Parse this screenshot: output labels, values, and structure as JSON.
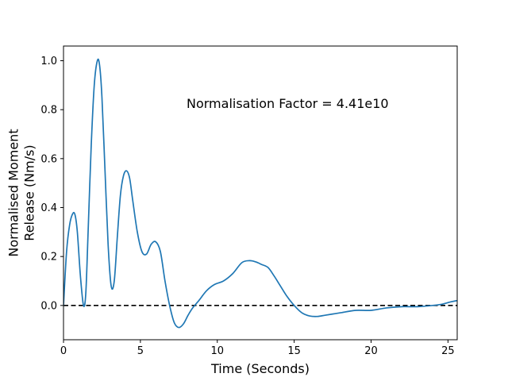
{
  "chart_data": {
    "type": "line",
    "xlabel": "Time (Seconds)",
    "ylabel_lines": [
      "Normalised Moment",
      "Release (Nm/s)"
    ],
    "annotation": "Normalisation Factor = 4.41e10",
    "xlim": [
      0,
      25.6
    ],
    "ylim": [
      -0.14,
      1.06
    ],
    "x_ticks": [
      0,
      5,
      10,
      15,
      20,
      25
    ],
    "y_ticks": [
      0.0,
      0.2,
      0.4,
      0.6,
      0.8,
      1.0
    ],
    "x_tick_labels": [
      "0",
      "5",
      "10",
      "15",
      "20",
      "25"
    ],
    "y_tick_labels": [
      "0.0",
      "0.2",
      "0.4",
      "0.6",
      "0.8",
      "1.0"
    ],
    "grid": false,
    "reference_line": {
      "y": 0.0,
      "style": "dashed",
      "color": "#000000"
    },
    "series": [
      {
        "color": "#1f77b4",
        "x": [
          0,
          0.2,
          0.4,
          0.6,
          0.75,
          0.9,
          1.1,
          1.3,
          1.45,
          1.6,
          1.8,
          2.0,
          2.2,
          2.35,
          2.5,
          2.7,
          2.9,
          3.1,
          3.3,
          3.5,
          3.7,
          3.9,
          4.1,
          4.3,
          4.5,
          4.8,
          5.1,
          5.4,
          5.7,
          6.0,
          6.3,
          6.6,
          6.9,
          7.2,
          7.5,
          7.8,
          8.1,
          8.4,
          8.8,
          9.3,
          9.8,
          10.4,
          11.0,
          11.6,
          12.1,
          12.5,
          12.9,
          13.3,
          13.7,
          14.1,
          14.5,
          15.0,
          15.5,
          16.0,
          16.5,
          17.0,
          17.5,
          18.0,
          19.0,
          20.0,
          21.0,
          22.0,
          23.0,
          24.0,
          24.6,
          25.2,
          25.6
        ],
        "y": [
          0.0,
          0.22,
          0.33,
          0.375,
          0.37,
          0.3,
          0.12,
          0.0,
          0.05,
          0.3,
          0.65,
          0.9,
          1.0,
          0.98,
          0.85,
          0.55,
          0.25,
          0.08,
          0.1,
          0.28,
          0.45,
          0.53,
          0.55,
          0.52,
          0.43,
          0.3,
          0.22,
          0.21,
          0.25,
          0.26,
          0.22,
          0.1,
          0.0,
          -0.07,
          -0.09,
          -0.075,
          -0.04,
          -0.01,
          0.02,
          0.06,
          0.085,
          0.1,
          0.13,
          0.175,
          0.183,
          0.178,
          0.167,
          0.155,
          0.12,
          0.08,
          0.04,
          0.0,
          -0.03,
          -0.043,
          -0.045,
          -0.04,
          -0.035,
          -0.03,
          -0.02,
          -0.02,
          -0.01,
          -0.005,
          -0.005,
          0.0,
          0.005,
          0.015,
          0.02
        ]
      }
    ]
  }
}
